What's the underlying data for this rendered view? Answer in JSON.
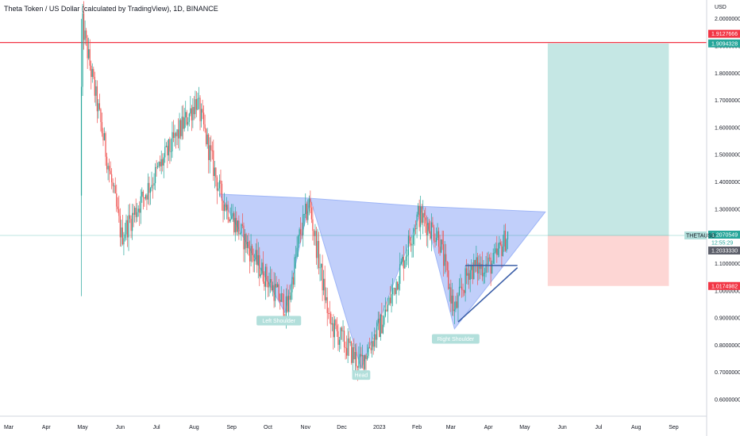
{
  "title": "Theta Token / US Dollar (calculated by TradingView), 1D, BINANCE",
  "currency": "USD",
  "colors": {
    "up": "#26a69a",
    "down": "#ef5350",
    "pattern_fill": "#9fb6f7",
    "triangle_line": "#3c5fa8",
    "target_zone": "#b2dfdb",
    "stop_zone": "#fdd2cf",
    "resistance_line": "#f23645",
    "price_label": "#f23645",
    "target_label": "#26a69a",
    "symbol_label": "#b2dfdb",
    "annotation_bg": "#b2dfdb"
  },
  "price_labels": [
    {
      "text": "1.9127666",
      "style": "red"
    },
    {
      "text": "1.9094328",
      "style": "green"
    },
    {
      "text": "1.2070549",
      "style": "green"
    },
    {
      "text": "12:55:29",
      "style": "plain"
    },
    {
      "text": "1.2033330",
      "style": "gray"
    },
    {
      "text": "1.0174982",
      "style": "red"
    }
  ],
  "symbol_label": "THETAUSD",
  "annotations": {
    "left_shoulder": "Left Shoulder",
    "head": "Head",
    "right_shoulder": "Right Shoulder"
  },
  "chart_data": {
    "type": "candlestick",
    "title": "Theta Token / US Dollar (calculated by TradingView), 1D, BINANCE",
    "ylabel": "USD",
    "ylim": [
      0.5,
      2.04
    ],
    "y_ticks": [
      0.6,
      0.7,
      0.8,
      0.9,
      1.0,
      1.1,
      1.2,
      1.3,
      1.4,
      1.5,
      1.6,
      1.7,
      1.8,
      1.9,
      2.0
    ],
    "y_tick_labels": [
      "0.6000000",
      "0.7000000",
      "0.8000000",
      "0.9000000",
      "1.0000000",
      "1.1000000",
      "1.2000000",
      "1.3000000",
      "1.4000000",
      "1.5000000",
      "1.6000000",
      "1.7000000",
      "1.8000000",
      "1.9000000",
      "2.0000000"
    ],
    "x_ticks": [
      "Mar",
      "Apr",
      "May",
      "Jun",
      "Jul",
      "Aug",
      "Sep",
      "Oct",
      "Nov",
      "Dec",
      "2023",
      "Feb",
      "Mar",
      "Apr",
      "May",
      "Jun",
      "Jul",
      "Aug",
      "Sep"
    ],
    "x_tick_day_index": [
      0,
      31,
      61,
      92,
      122,
      153,
      184,
      214,
      245,
      275,
      306,
      337,
      365,
      396,
      426,
      457,
      487,
      518,
      549
    ],
    "horizontal_lines": [
      {
        "name": "resistance",
        "y": 1.9127666
      },
      {
        "name": "current-price",
        "y": 1.203333
      }
    ],
    "key_points": [
      {
        "day": 60,
        "price": 2.0,
        "note": "spike high"
      },
      {
        "day": 93,
        "price": 1.2
      },
      {
        "day": 155,
        "price": 1.7
      },
      {
        "day": 175,
        "price": 1.35
      },
      {
        "day": 205,
        "price": 1.1
      },
      {
        "day": 230,
        "price": 0.93
      },
      {
        "day": 240,
        "price": 1.2
      },
      {
        "day": 248,
        "price": 1.32
      },
      {
        "day": 265,
        "price": 0.88
      },
      {
        "day": 290,
        "price": 0.73
      },
      {
        "day": 310,
        "price": 0.9
      },
      {
        "day": 338,
        "price": 1.28
      },
      {
        "day": 355,
        "price": 1.2
      },
      {
        "day": 368,
        "price": 0.92
      },
      {
        "day": 380,
        "price": 1.08
      },
      {
        "day": 400,
        "price": 1.1
      },
      {
        "day": 412,
        "price": 1.21
      }
    ],
    "pattern": {
      "left_shoulder": {
        "points": [
          [
            174,
            1.355
          ],
          [
            228,
            0.92
          ],
          [
            249,
            1.34
          ]
        ]
      },
      "head": {
        "points": [
          [
            249,
            1.34
          ],
          [
            291,
            0.715
          ],
          [
            342,
            1.31
          ]
        ]
      },
      "right_shoulder": {
        "points": [
          [
            342,
            1.31
          ],
          [
            368,
            0.86
          ],
          [
            443,
            1.29
          ]
        ]
      }
    },
    "triangle": {
      "top_line": [
        [
          377,
          1.093
        ],
        [
          420,
          1.093
        ]
      ],
      "bottom_line": [
        [
          371,
          0.885
        ],
        [
          420,
          1.085
        ]
      ]
    },
    "position": {
      "day_start": 445,
      "day_end": 545,
      "entry": 1.203333,
      "target": 1.9094328,
      "stop": 1.0174982
    }
  }
}
